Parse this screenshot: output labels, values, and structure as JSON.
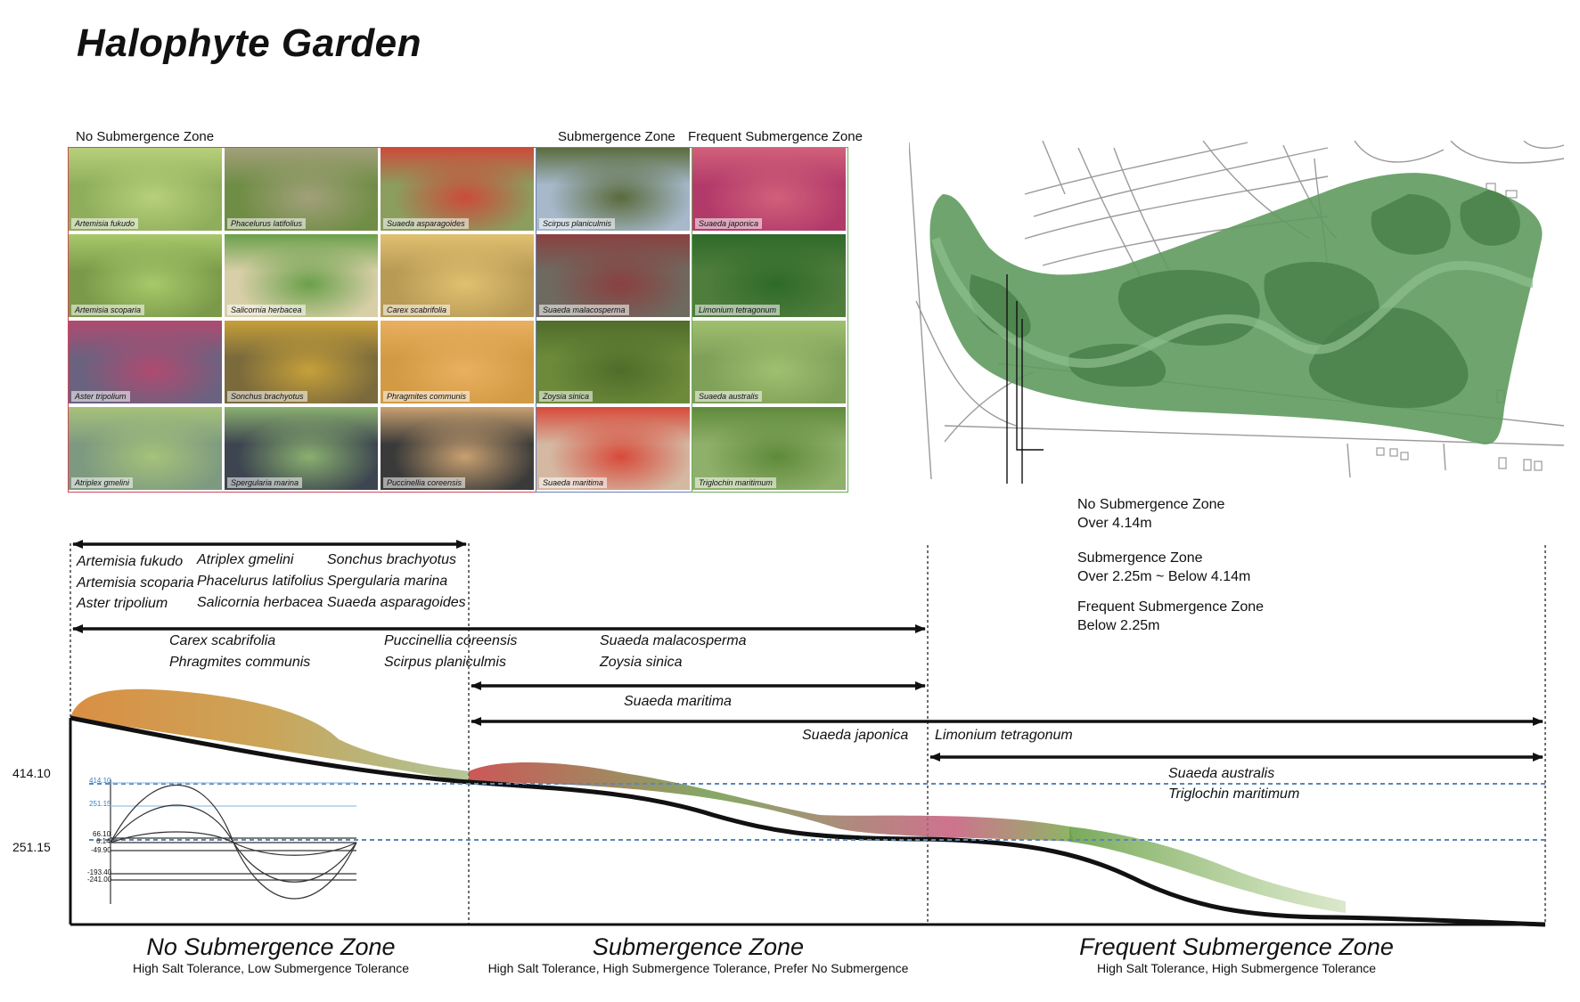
{
  "title": "Halophyte Garden",
  "grid": {
    "headers": {
      "no_submergence": "No Submergence Zone",
      "submergence": "Submergence Zone",
      "frequent_submergence": "Frequent Submergence Zone"
    },
    "columns": [
      [
        "Artemisia fukudo",
        "Artemisia scoparia",
        "Aster tripolium",
        "Atriplex gmelini"
      ],
      [
        "Phacelurus latifolius",
        "Salicornia herbacea",
        "Sonchus brachyotus",
        "Spergularia marina"
      ],
      [
        "Suaeda asparagoides",
        "Carex scabrifolia",
        "Phragmites communis",
        "Puccinellia coreensis"
      ],
      [
        "Scirpus planiculmis",
        "Suaeda malacosperma",
        "Zoysia sinica",
        "Suaeda maritima"
      ],
      [
        "Suaeda japonica",
        "Limonium tetragonum",
        "Suaeda australis",
        "Triglochin maritimum"
      ]
    ],
    "tints": [
      [
        "#8fae5c",
        "#6f8d45",
        "#8b9e5e",
        "#a6b8ca",
        "#b23a6a"
      ],
      [
        "#7a9a4a",
        "#d8cfa8",
        "#b89a55",
        "#6e6a60",
        "#4f7d3c"
      ],
      [
        "#6b6280",
        "#7a6a3c",
        "#d39a44",
        "#6d8a3a",
        "#7fa058"
      ],
      [
        "#7d9a80",
        "#3d4550",
        "#3a3a3a",
        "#d4b8a2",
        "#8fb06a"
      ]
    ],
    "accents": [
      [
        "#b7d07a",
        "#a2a07a",
        "#cc4b3a",
        "#5a6b3c",
        "#d2607a"
      ],
      [
        "#a8c86a",
        "#6aa04a",
        "#e0c070",
        "#8a4040",
        "#2f6a2a"
      ],
      [
        "#b04a70",
        "#c6a03a",
        "#e8b060",
        "#4f6d2a",
        "#a0c070"
      ],
      [
        "#a6c27a",
        "#8ab070",
        "#c8a070",
        "#d84a3a",
        "#5f8a3a"
      ]
    ],
    "border_colors": {
      "no_submergence": "#d0485a",
      "submergence": "#6a7fb8",
      "frequent_submergence": "#6aab5a"
    }
  },
  "legend": {
    "items": [
      {
        "name": "No Submergence Zone",
        "range": "Over 4.14m"
      },
      {
        "name": "Submergence Zone",
        "range": "Over 2.25m ~ Below 4.14m"
      },
      {
        "name": "Frequent Submergence Zone",
        "range": "Below 2.25m"
      }
    ]
  },
  "section": {
    "group1": {
      "col1": [
        "Artemisia fukudo",
        "Artemisia scoparia",
        "Aster tripolium"
      ],
      "col2": [
        "Atriplex gmelini",
        "Phacelurus latifolius",
        "Salicornia herbacea"
      ],
      "col3": [
        "Sonchus brachyotus",
        "Spergularia marina",
        "Suaeda asparagoides"
      ]
    },
    "group2": {
      "col1": [
        "Carex scabrifolia",
        "Phragmites communis"
      ],
      "col2": [
        "Puccinellia coreensis",
        "Scirpus planiculmis"
      ],
      "col3": [
        "Suaeda malacosperma",
        "Zoysia sinica"
      ]
    },
    "maritima": "Suaeda maritima",
    "japonica": "Suaeda japonica",
    "limonium": "Limonium tetragonum",
    "group5": [
      "Suaeda australis",
      "Triglochin maritimum"
    ],
    "elevations": {
      "high": "414.10",
      "low": "251.15"
    },
    "wave_labels": [
      "414.10",
      "251.15",
      "66.10",
      "6.14",
      "-49.90",
      "-193.40",
      "-241.00"
    ],
    "zones": [
      {
        "title": "No Submergence Zone",
        "subtitle": "High Salt Tolerance, Low Submergence Tolerance"
      },
      {
        "title": "Submergence Zone",
        "subtitle": "High Salt Tolerance, High Submergence Tolerance, Prefer No Submergence"
      },
      {
        "title": "Frequent Submergence Zone",
        "subtitle": "High Salt Tolerance, High Submergence Tolerance"
      }
    ]
  },
  "colors": {
    "dashed_level": "#5a86b8",
    "map_green": "#5f9a5f",
    "ground": "#111111"
  }
}
